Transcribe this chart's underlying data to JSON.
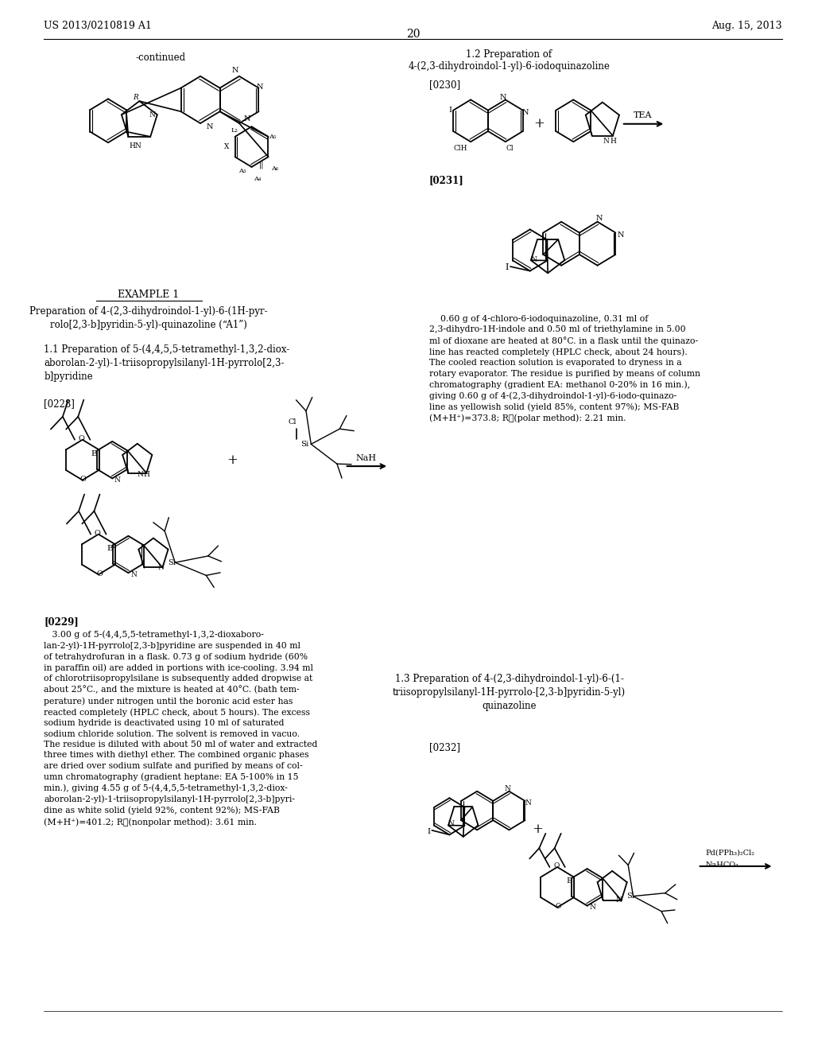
{
  "background_color": "#ffffff",
  "header_left": "US 2013/0210819 A1",
  "header_right": "Aug. 15, 2013",
  "page_number": "20"
}
